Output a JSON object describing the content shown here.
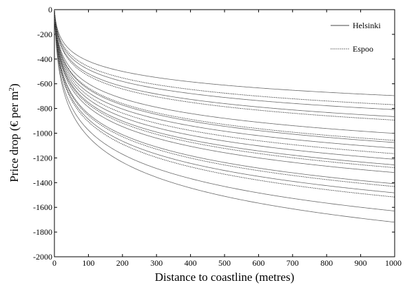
{
  "chart_data": {
    "type": "line",
    "title": "",
    "xlabel": "Distance to coastline (metres)",
    "ylabel_main": "Price drop (€ per m",
    "ylabel_sup": "2",
    "ylabel_tail": ")",
    "xlim": [
      0,
      1000
    ],
    "ylim": [
      -2000,
      0
    ],
    "xticks": [
      0,
      100,
      200,
      300,
      400,
      500,
      600,
      700,
      800,
      900,
      1000
    ],
    "yticks": [
      0,
      -200,
      -400,
      -600,
      -800,
      -1000,
      -1200,
      -1400,
      -1600,
      -1800,
      -2000
    ],
    "xtick_labels": [
      "0",
      "100",
      "200",
      "300",
      "400",
      "500",
      "600",
      "700",
      "800",
      "900",
      "1000"
    ],
    "ytick_labels": [
      "0",
      "-200",
      "-400",
      "-600",
      "-800",
      "-1000",
      "-1200",
      "-1400",
      "-1600",
      "-1800",
      "-2000"
    ],
    "legend_position": "top-right",
    "model": "y = -b * ln(1 + x / c)",
    "series": [
      {
        "name": "Helsinki",
        "style": "solid",
        "curves": [
          {
            "b": 123,
            "c": 3.5
          },
          {
            "b": 143,
            "c": 3.5
          },
          {
            "b": 153,
            "c": 3.5
          },
          {
            "b": 177,
            "c": 3.5
          },
          {
            "b": 190,
            "c": 3.5
          },
          {
            "b": 198,
            "c": 3.5
          },
          {
            "b": 214,
            "c": 3.5
          },
          {
            "b": 222,
            "c": 3.5
          },
          {
            "b": 233,
            "c": 3.5
          },
          {
            "b": 249,
            "c": 3.5
          },
          {
            "b": 262,
            "c": 3.5
          },
          {
            "b": 288,
            "c": 3.5
          },
          {
            "b": 304,
            "c": 3.5
          }
        ]
      },
      {
        "name": "Espoo",
        "style": "dotted",
        "curves": [
          {
            "b": 136,
            "c": 3.5
          },
          {
            "b": 158,
            "c": 3.5
          },
          {
            "b": 187,
            "c": 3.5
          },
          {
            "b": 206,
            "c": 3.5
          },
          {
            "b": 226,
            "c": 3.5
          },
          {
            "b": 253,
            "c": 3.5
          },
          {
            "b": 268,
            "c": 3.5
          }
        ]
      }
    ]
  }
}
